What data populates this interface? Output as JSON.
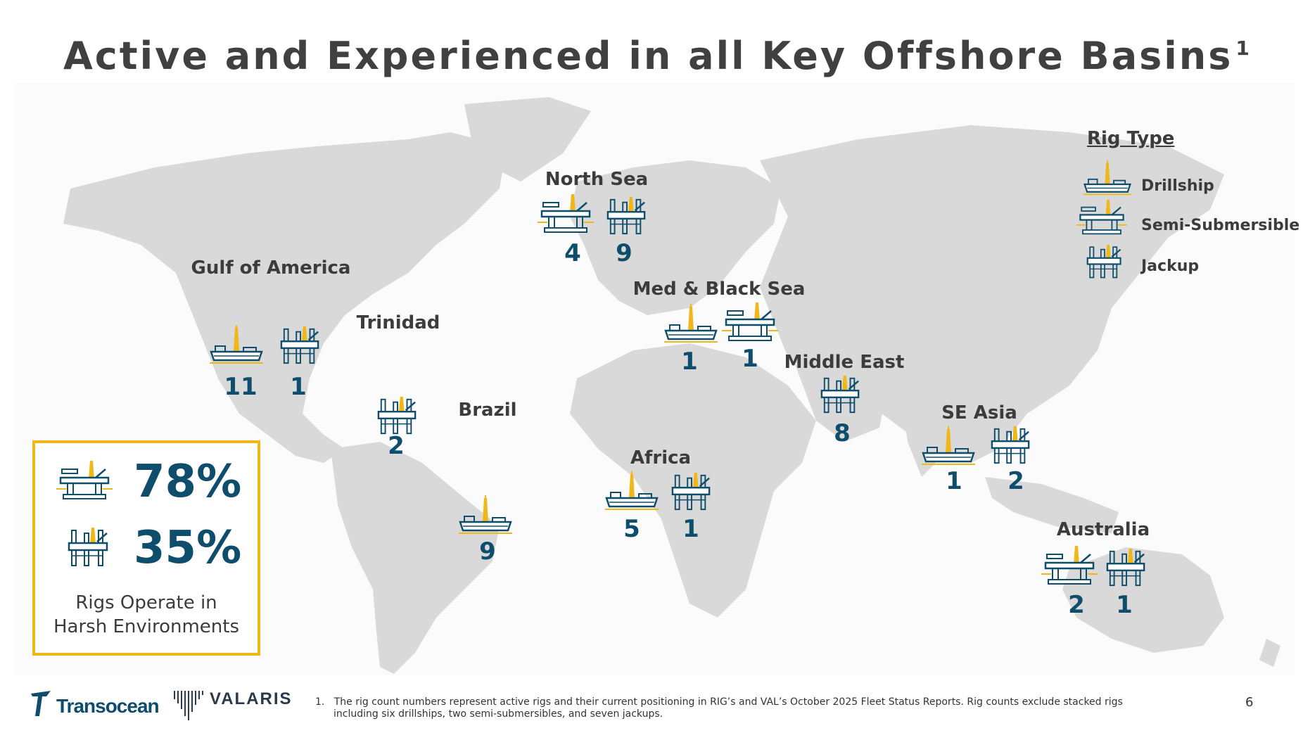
{
  "title": {
    "text": "Active and Experienced in all Key Offshore Basins",
    "superscript": "1"
  },
  "colors": {
    "accent": "#f0b719",
    "navy": "#0f4d6c",
    "land": "#d9d9d9",
    "text": "#3c3c3c"
  },
  "regions": [
    {
      "label": "Gulf of America",
      "counts": [
        "11",
        "1"
      ]
    },
    {
      "label": "Trinidad",
      "counts": [
        "2"
      ]
    },
    {
      "label": "Brazil",
      "counts": [
        "9"
      ]
    },
    {
      "label": "North Sea",
      "counts": [
        "4",
        "9"
      ]
    },
    {
      "label": "Med & Black Sea",
      "counts": [
        "1",
        "1"
      ]
    },
    {
      "label": "Africa",
      "counts": [
        "5",
        "1"
      ]
    },
    {
      "label": "Middle East",
      "counts": [
        "8"
      ]
    },
    {
      "label": "SE Asia",
      "counts": [
        "1",
        "2"
      ]
    },
    {
      "label": "Australia",
      "counts": [
        "2",
        "1"
      ]
    }
  ],
  "legend": {
    "title": "Rig Type",
    "items": [
      {
        "label": "Drillship",
        "icon": "drillship-icon"
      },
      {
        "label": "Semi-Submersible",
        "icon": "semisub-icon"
      },
      {
        "label": "Jackup",
        "icon": "jackup-icon"
      }
    ]
  },
  "harsh": {
    "semisub_pct": "78%",
    "jackup_pct": "35%",
    "caption_line1": "Rigs Operate in",
    "caption_line2": "Harsh Environments"
  },
  "footer": {
    "logo1": "Transocean",
    "logo2": "VALARIS",
    "footnote": "1.   The rig count numbers represent active rigs and their current positioning in RIG’s and VAL’s October 2025 Fleet Status Reports. Rig counts exclude stacked rigs including six drillships, two semi-submersibles, and seven jackups.",
    "page_number": "6"
  }
}
